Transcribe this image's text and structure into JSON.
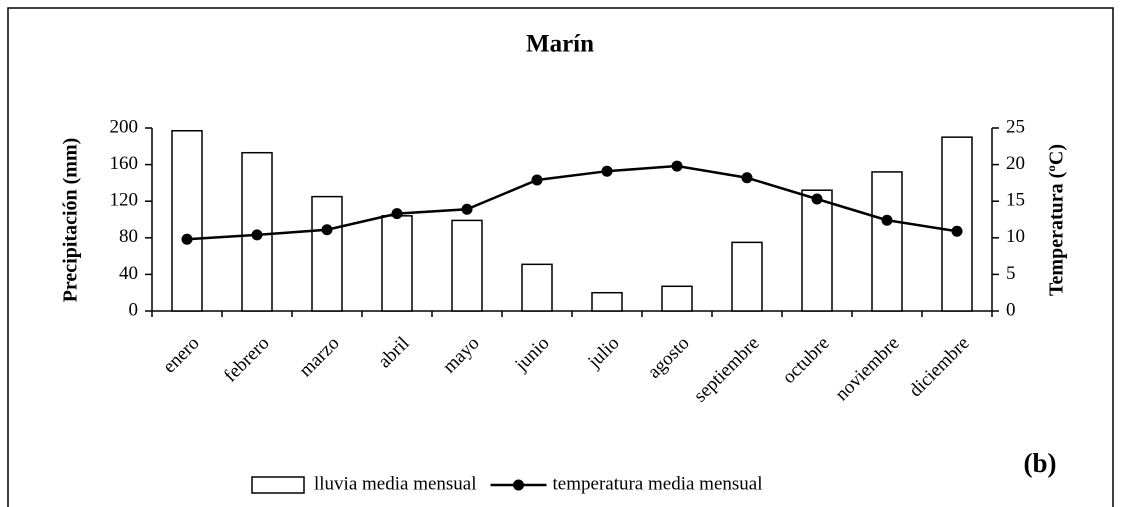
{
  "chart_data": {
    "type": "bar",
    "title": "Marín",
    "categories": [
      "enero",
      "febrero",
      "marzo",
      "abril",
      "mayo",
      "junio",
      "julio",
      "agosto",
      "septiembre",
      "octubre",
      "noviembre",
      "diciembre"
    ],
    "series": [
      {
        "name": "lluvia media mensual",
        "type": "bar",
        "color": "#ffffff",
        "values": [
          197,
          173,
          125,
          104,
          99,
          51,
          20,
          27,
          75,
          132,
          152,
          190
        ]
      },
      {
        "name": "temperatura media mensual",
        "type": "line",
        "axis": "y2",
        "color": "#000000",
        "values": [
          9.8,
          10.4,
          11.1,
          13.3,
          13.9,
          17.9,
          19.1,
          19.8,
          18.2,
          15.3,
          12.4,
          10.9
        ]
      }
    ],
    "ylabel": "Precipitación (mm)",
    "y2label": "Temperatura (ºC)",
    "ylim": [
      0,
      200
    ],
    "yticks": [
      0,
      40,
      80,
      120,
      160,
      200
    ],
    "y2lim": [
      0,
      25
    ],
    "y2ticks": [
      0,
      5,
      10,
      15,
      20,
      25
    ],
    "annotation": "(b)",
    "legend": "bottom"
  }
}
